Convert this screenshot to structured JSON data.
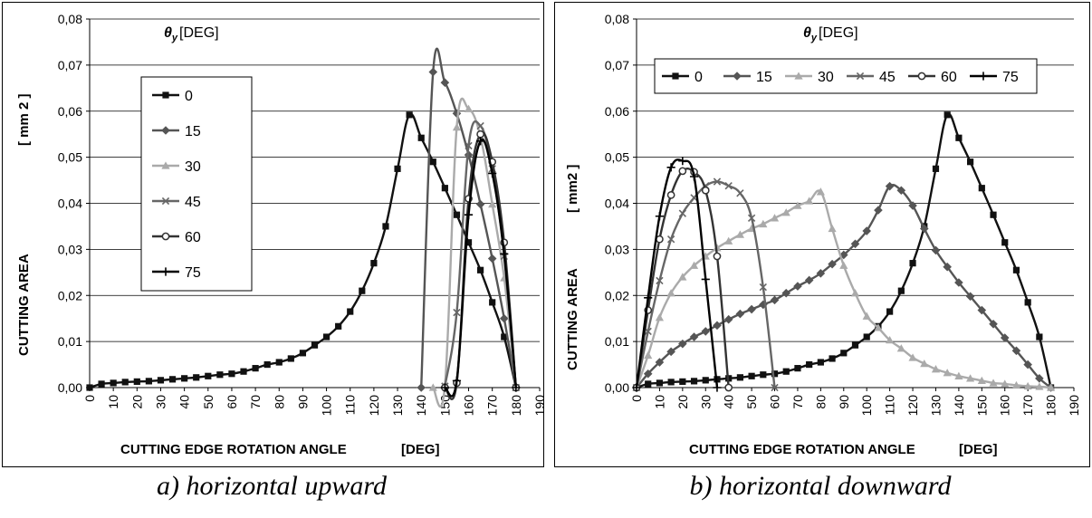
{
  "chart_data": [
    {
      "type": "line",
      "panel": "a",
      "caption": "a) horizontal upward",
      "xlabel": "CUTTING EDGE ROTATION ANGLE",
      "xunit": "[DEG]",
      "ylabel": "CUTTING AREA",
      "yunit": "[ mm  2 ]",
      "legend_title_symbol": "θy",
      "legend_title_unit": "[DEG]",
      "legend_placement": "left-inside",
      "legend_orientation": "vertical",
      "xlim": [
        0,
        190
      ],
      "ylim": [
        0,
        0.08
      ],
      "xticks": [
        "0",
        "10",
        "20",
        "30",
        "40",
        "50",
        "60",
        "70",
        "80",
        "90",
        "100",
        "110",
        "120",
        "130",
        "140",
        "150",
        "160",
        "170",
        "180",
        "190"
      ],
      "yticks": [
        "0,00",
        "0,01",
        "0,02",
        "0,03",
        "0,04",
        "0,05",
        "0,06",
        "0,07",
        "0,08"
      ],
      "series": [
        {
          "name": "0",
          "color": "#111111",
          "marker": "square",
          "x": [
            0,
            5,
            10,
            15,
            20,
            25,
            30,
            35,
            40,
            45,
            50,
            55,
            60,
            65,
            70,
            75,
            80,
            85,
            90,
            95,
            100,
            105,
            110,
            115,
            120,
            125,
            130,
            135,
            140,
            145,
            150,
            155,
            160,
            165,
            170,
            175,
            180
          ],
          "y": [
            0,
            0.0008,
            0.001,
            0.0012,
            0.0013,
            0.0014,
            0.0016,
            0.0018,
            0.002,
            0.0022,
            0.0025,
            0.0028,
            0.003,
            0.0035,
            0.0042,
            0.005,
            0.0055,
            0.0063,
            0.0075,
            0.0092,
            0.011,
            0.0133,
            0.0165,
            0.021,
            0.027,
            0.035,
            0.0475,
            0.0592,
            0.0542,
            0.049,
            0.0433,
            0.0375,
            0.0315,
            0.0255,
            0.0185,
            0.011,
            0
          ]
        },
        {
          "name": "15",
          "color": "#555555",
          "marker": "diamond",
          "x": [
            140,
            145,
            150,
            155,
            160,
            165,
            170,
            175,
            180
          ],
          "y": [
            0,
            0.0685,
            0.0662,
            0.0595,
            0.0505,
            0.0398,
            0.028,
            0.015,
            0
          ]
        },
        {
          "name": "30",
          "color": "#aaaaaa",
          "marker": "triangle",
          "x": [
            145,
            150,
            155,
            160,
            165,
            170,
            175,
            180
          ],
          "y": [
            0,
            0.0005,
            0.0565,
            0.0605,
            0.0545,
            0.0398,
            0.0238,
            0
          ]
        },
        {
          "name": "45",
          "color": "#666666",
          "marker": "x",
          "x": [
            150,
            155,
            160,
            165,
            170,
            175,
            180
          ],
          "y": [
            0.0003,
            0.0163,
            0.0525,
            0.0568,
            0.0475,
            0.0285,
            0
          ]
        },
        {
          "name": "60",
          "color": "#333333",
          "marker": "circle",
          "x": [
            150,
            155,
            160,
            165,
            170,
            175,
            180
          ],
          "y": [
            0,
            0.001,
            0.041,
            0.055,
            0.049,
            0.0315,
            0
          ]
        },
        {
          "name": "75",
          "color": "#000000",
          "marker": "plus",
          "x": [
            150,
            155,
            160,
            165,
            170,
            175,
            180
          ],
          "y": [
            0,
            0.0015,
            0.0375,
            0.0535,
            0.0465,
            0.029,
            0
          ]
        }
      ]
    },
    {
      "type": "line",
      "panel": "b",
      "caption": "b) horizontal downward",
      "xlabel": "CUTTING EDGE ROTATION ANGLE",
      "xunit": "[DEG]",
      "ylabel": "CUTTING AREA",
      "yunit": "[ mm2 ]",
      "legend_title_symbol": "θy",
      "legend_title_unit": "[DEG]",
      "legend_placement": "top",
      "legend_orientation": "horizontal",
      "xlim": [
        0,
        190
      ],
      "ylim": [
        0,
        0.08
      ],
      "xticks": [
        "0",
        "10",
        "20",
        "30",
        "40",
        "50",
        "60",
        "70",
        "80",
        "90",
        "100",
        "110",
        "120",
        "130",
        "140",
        "150",
        "160",
        "170",
        "180",
        "190"
      ],
      "yticks": [
        "0,00",
        "0,01",
        "0,02",
        "0,03",
        "0,04",
        "0,05",
        "0,06",
        "0,07",
        "0,08"
      ],
      "series": [
        {
          "name": "0",
          "color": "#111111",
          "marker": "square",
          "x": [
            0,
            5,
            10,
            15,
            20,
            25,
            30,
            35,
            40,
            45,
            50,
            55,
            60,
            65,
            70,
            75,
            80,
            85,
            90,
            95,
            100,
            105,
            110,
            115,
            120,
            125,
            130,
            135,
            140,
            145,
            150,
            155,
            160,
            165,
            170,
            175,
            180
          ],
          "y": [
            0,
            0.0008,
            0.001,
            0.0012,
            0.0013,
            0.0014,
            0.0016,
            0.0018,
            0.002,
            0.0022,
            0.0025,
            0.0028,
            0.003,
            0.0035,
            0.0042,
            0.005,
            0.0055,
            0.0063,
            0.0075,
            0.0092,
            0.011,
            0.0133,
            0.0165,
            0.021,
            0.027,
            0.035,
            0.0475,
            0.0592,
            0.0542,
            0.049,
            0.0433,
            0.0375,
            0.0315,
            0.0255,
            0.0185,
            0.011,
            0
          ]
        },
        {
          "name": "15",
          "color": "#555555",
          "marker": "diamond",
          "x": [
            0,
            5,
            10,
            15,
            20,
            25,
            30,
            35,
            40,
            45,
            50,
            55,
            60,
            65,
            70,
            75,
            80,
            85,
            90,
            95,
            100,
            105,
            110,
            115,
            120,
            125,
            130,
            135,
            140,
            145,
            150,
            155,
            160,
            165,
            170,
            175,
            180
          ],
          "y": [
            0,
            0.003,
            0.0055,
            0.0078,
            0.0095,
            0.011,
            0.0122,
            0.0135,
            0.0148,
            0.016,
            0.017,
            0.018,
            0.019,
            0.0205,
            0.022,
            0.0233,
            0.0248,
            0.0268,
            0.0288,
            0.0312,
            0.034,
            0.0385,
            0.0437,
            0.0428,
            0.0395,
            0.0345,
            0.0298,
            0.0262,
            0.0228,
            0.0198,
            0.0168,
            0.0138,
            0.0108,
            0.008,
            0.005,
            0.002,
            0
          ]
        },
        {
          "name": "30",
          "color": "#aaaaaa",
          "marker": "triangle",
          "x": [
            0,
            5,
            10,
            15,
            20,
            25,
            30,
            35,
            40,
            45,
            50,
            55,
            60,
            65,
            70,
            75,
            80,
            85,
            90,
            95,
            100,
            105,
            110,
            115,
            120,
            125,
            130,
            135,
            140,
            145,
            150,
            155,
            160,
            165,
            170,
            175,
            180
          ],
          "y": [
            0,
            0.007,
            0.0152,
            0.0205,
            0.024,
            0.0265,
            0.0285,
            0.0303,
            0.0318,
            0.0332,
            0.0345,
            0.0355,
            0.0368,
            0.038,
            0.0395,
            0.0405,
            0.0425,
            0.0345,
            0.0265,
            0.0205,
            0.0155,
            0.013,
            0.0103,
            0.0085,
            0.0065,
            0.0052,
            0.004,
            0.0032,
            0.0025,
            0.002,
            0.0015,
            0.001,
            0.0008,
            0.0005,
            0.0003,
            0.0002,
            0
          ]
        },
        {
          "name": "45",
          "color": "#666666",
          "marker": "x",
          "x": [
            0,
            5,
            10,
            15,
            20,
            25,
            30,
            35,
            40,
            45,
            50,
            55,
            60
          ],
          "y": [
            0,
            0.0122,
            0.0232,
            0.0322,
            0.0378,
            0.0412,
            0.0438,
            0.0447,
            0.0438,
            0.0422,
            0.0368,
            0.0218,
            0
          ]
        },
        {
          "name": "60",
          "color": "#333333",
          "marker": "circle",
          "x": [
            0,
            5,
            10,
            15,
            20,
            25,
            30,
            35,
            40
          ],
          "y": [
            0,
            0.0168,
            0.0322,
            0.0418,
            0.047,
            0.0468,
            0.0428,
            0.0285,
            0
          ]
        },
        {
          "name": "75",
          "color": "#000000",
          "marker": "plus",
          "x": [
            0,
            5,
            10,
            15,
            20,
            25,
            30,
            35
          ],
          "y": [
            0,
            0.0195,
            0.0372,
            0.0478,
            0.0492,
            0.0458,
            0.0235,
            0
          ]
        }
      ]
    }
  ]
}
